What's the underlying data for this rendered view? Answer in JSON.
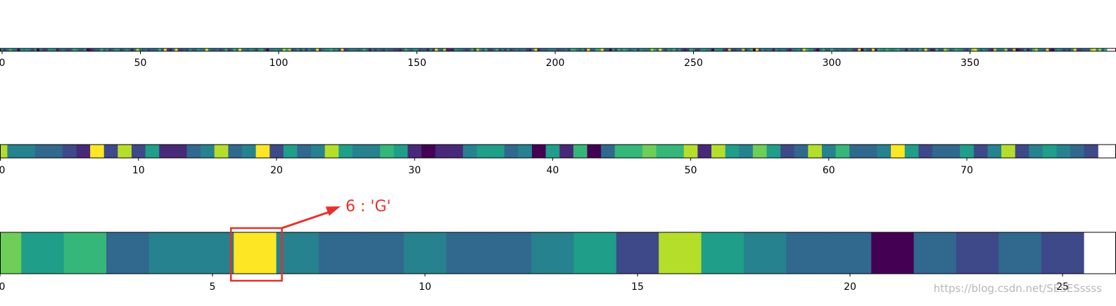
{
  "colormap": [
    "#440154",
    "#482878",
    "#3e4989",
    "#31688e",
    "#26828e",
    "#1f9e89",
    "#35b779",
    "#6ece58",
    "#b5de2b",
    "#fde725"
  ],
  "accent_color": "#e8302a",
  "watermark": "https://blog.csdn.net/SESESssss",
  "chart_data": [
    {
      "type": "heatmap",
      "name": "strip-1",
      "n": 400,
      "xlim": [
        0,
        400
      ],
      "ticks": [
        0,
        50,
        100,
        150,
        200,
        250,
        300,
        350
      ],
      "tick_labels": [
        "0",
        "50",
        "100",
        "150",
        "200",
        "250",
        "300",
        "350"
      ],
      "values_note": "strip too thin to read individual cells; dominant cell levels rendered pseudo-randomly"
    },
    {
      "type": "heatmap",
      "name": "strip-2",
      "xlim": [
        0,
        80
      ],
      "ticks": [
        0,
        10,
        20,
        30,
        40,
        50,
        60,
        70
      ],
      "tick_labels": [
        "0",
        "10",
        "20",
        "30",
        "40",
        "50",
        "60",
        "70"
      ],
      "values": [
        8,
        4,
        4,
        3,
        3,
        2,
        1,
        9,
        2,
        8,
        2,
        5,
        1,
        1,
        3,
        4,
        8,
        3,
        4,
        9,
        2,
        5,
        3,
        4,
        8,
        5,
        4,
        4,
        6,
        5,
        1,
        0,
        1,
        1,
        4,
        5,
        5,
        3,
        4,
        0,
        5,
        1,
        6,
        0,
        3,
        6,
        6,
        7,
        6,
        6,
        8,
        1,
        8,
        5,
        4,
        7,
        5,
        2,
        3,
        8,
        4,
        6,
        3,
        3,
        4,
        9,
        5,
        2,
        3,
        3,
        5,
        2,
        4,
        8,
        2,
        4,
        5,
        4,
        3,
        2
      ]
    },
    {
      "type": "heatmap",
      "name": "strip-3",
      "xlim": [
        0,
        26
      ],
      "ticks": [
        0,
        5,
        10,
        15,
        20,
        25
      ],
      "tick_labels": [
        "0",
        "5",
        "10",
        "15",
        "20",
        "25"
      ],
      "values": [
        7,
        5,
        6,
        3,
        4,
        4,
        9,
        4,
        3,
        3,
        4,
        3,
        3,
        4,
        5,
        2,
        8,
        5,
        4,
        3,
        3,
        0,
        3,
        2,
        3,
        2
      ],
      "annotation": {
        "index": 6,
        "text": "6 : 'G'"
      }
    }
  ]
}
